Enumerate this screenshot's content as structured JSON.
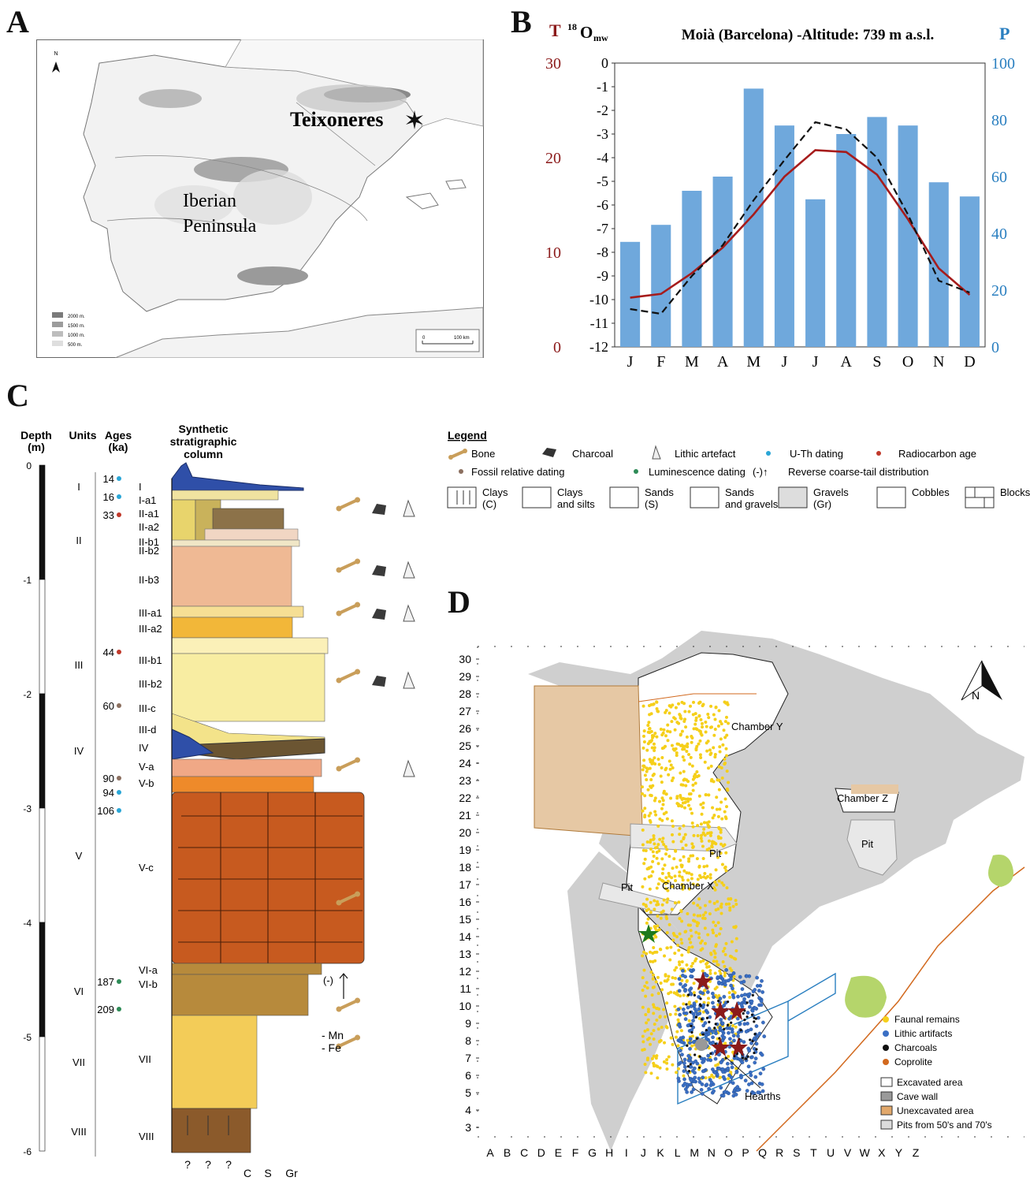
{
  "panels": {
    "a": "A",
    "b": "B",
    "c": "C",
    "d": "D"
  },
  "map": {
    "site_label": "Teixoneres",
    "region_label_1": "Iberian",
    "region_label_2": "Peninsula",
    "north": "N",
    "elevation_legend": [
      "2000 m.",
      "1500 m.",
      "1000 m.",
      "500 m."
    ],
    "elevation_colors": [
      "#7a7a7a",
      "#9c9c9c",
      "#bdbdbd",
      "#dedede"
    ],
    "scalebar": {
      "start": "0",
      "end": "100 km"
    }
  },
  "chart_data": {
    "type": "bar+line",
    "title": "Moià (Barcelona) -Altitude: 739 m a.s.l.",
    "categories": [
      "J",
      "F",
      "M",
      "A",
      "M",
      "J",
      "J",
      "A",
      "S",
      "O",
      "N",
      "D"
    ],
    "left_axis_T": {
      "label": "T",
      "ticks": [
        "0",
        "10",
        "20",
        "30"
      ],
      "range": [
        0,
        30
      ],
      "color": "#8b1a1a"
    },
    "left_axis_O": {
      "label_main": "O",
      "label_sup": "18",
      "label_sub": "mw",
      "ticks": [
        "0",
        "-1",
        "-2",
        "-3",
        "-4",
        "-5",
        "-6",
        "-7",
        "-8",
        "-9",
        "-10",
        "-11",
        "-12"
      ],
      "range": [
        -12,
        0
      ]
    },
    "right_axis_P": {
      "label": "P",
      "ticks": [
        "0",
        "20",
        "40",
        "60",
        "80",
        "100"
      ],
      "range": [
        0,
        100
      ],
      "color": "#2a7fc0"
    },
    "series": [
      {
        "values": [
          37,
          43,
          55,
          60,
          91,
          78,
          52,
          75,
          81,
          78,
          58,
          53
        ],
        "color": "#6fa8dc",
        "kind": "bar",
        "axis": "P"
      },
      {
        "values": [
          5.2,
          5.6,
          7.8,
          10.5,
          14.0,
          18.0,
          20.8,
          20.6,
          18.2,
          13.5,
          8.3,
          5.5
        ],
        "color": "#a61c1c",
        "kind": "line",
        "axis": "T"
      },
      {
        "values": [
          -10.4,
          -10.6,
          -9.0,
          -7.7,
          -5.8,
          -4.1,
          -2.5,
          -2.8,
          -4.0,
          -6.4,
          -9.2,
          -9.7
        ],
        "color": "#111111",
        "kind": "dashed",
        "axis": "O"
      }
    ]
  },
  "column": {
    "headers": {
      "depth": "Depth",
      "depth_unit": "(m)",
      "units": "Units",
      "ages": "Ages",
      "ages_unit": "(ka)",
      "synthetic_1": "Synthetic",
      "synthetic_2": "stratigraphic",
      "synthetic_3": "column"
    },
    "depth_ticks": [
      "0",
      "-1",
      "-2",
      "-3",
      "-4",
      "-5",
      "-6"
    ],
    "units": [
      "I",
      "II",
      "III",
      "IV",
      "V",
      "VI",
      "VII",
      "VIII"
    ],
    "ages": [
      {
        "value": "14",
        "color": "#2aa6d6"
      },
      {
        "value": "16",
        "color": "#2aa6d6"
      },
      {
        "value": "33",
        "color": "#c0392b"
      },
      {
        "value": "44",
        "color": "#c0392b"
      },
      {
        "value": "60",
        "color": "#8b6f5f"
      },
      {
        "value": "90",
        "color": "#8b6f5f"
      },
      {
        "value": "94",
        "color": "#2aa6d6"
      },
      {
        "value": "106",
        "color": "#2aa6d6"
      },
      {
        "value": "187",
        "color": "#2e8b57"
      },
      {
        "value": "209",
        "color": "#2e8b57"
      }
    ],
    "layers": [
      "I",
      "I-a1",
      "II-a1",
      "II-a2",
      "II-b1",
      "II-b2",
      "II-b3",
      "III-a1",
      "III-a2",
      "III-b1",
      "III-b2",
      "III-c",
      "III-d",
      "IV",
      "V-a",
      "V-b",
      "V-c",
      "VI-a",
      "VI-b",
      "VII",
      "VIII"
    ],
    "bottom_labels": [
      "?",
      "?",
      "?",
      "C",
      "S",
      "Gr"
    ],
    "reverse_mark": "(-)",
    "mn": "- Mn",
    "fe": "- Fe"
  },
  "legend": {
    "title": "Legend",
    "bone": "Bone",
    "charcoal": "Charcoal",
    "lithic": "Lithic artefact",
    "uth": "U-Th dating",
    "radiocarbon": "Radiocarbon age",
    "fossil": "Fossil relative dating",
    "luminescence": "Luminescence dating",
    "reverse": "(-)↑",
    "reverse_text": "Reverse coarse-tail distribution",
    "textures": [
      {
        "l1": "Clays",
        "l2": "(C)"
      },
      {
        "l1": "Clays",
        "l2": "and silts"
      },
      {
        "l1": "Sands",
        "l2": "(S)"
      },
      {
        "l1": "Sands",
        "l2": "and gravels"
      },
      {
        "l1": "Gravels",
        "l2": "(Gr)"
      },
      {
        "l1": "Cobbles",
        "l2": ""
      },
      {
        "l1": "Blocks",
        "l2": ""
      }
    ]
  },
  "plan": {
    "rows": [
      "30",
      "29",
      "28",
      "27",
      "26",
      "25",
      "24",
      "23",
      "22",
      "21",
      "20",
      "19",
      "18",
      "17",
      "16",
      "15",
      "14",
      "13",
      "12",
      "11",
      "10",
      "9",
      "8",
      "7",
      "6",
      "5",
      "4",
      "3"
    ],
    "cols": [
      "A",
      "B",
      "C",
      "D",
      "E",
      "F",
      "G",
      "H",
      "I",
      "J",
      "K",
      "L",
      "M",
      "N",
      "O",
      "P",
      "Q",
      "R",
      "S",
      "T",
      "U",
      "V",
      "W",
      "X",
      "Y",
      "Z"
    ],
    "chamber_x": "Chamber X",
    "chamber_y": "Chamber Y",
    "chamber_z": "Chamber Z",
    "pit": "Pit",
    "hearths": "Hearths",
    "north": "N",
    "legend_points": [
      {
        "label": "Faunal remains",
        "color": "#f5cf1a"
      },
      {
        "label": "Lithic artifacts",
        "color": "#3a6fc4"
      },
      {
        "label": "Charcoals",
        "color": "#111111"
      },
      {
        "label": "Coprolite",
        "color": "#d2691e"
      }
    ],
    "legend_areas": [
      {
        "label": "Excavated area",
        "color": "#ffffff"
      },
      {
        "label": "Cave wall",
        "color": "#9a9a9a"
      },
      {
        "label": "Unexcavated area",
        "color": "#e2a86b"
      },
      {
        "label": "Pits from 50's and 70's",
        "color": "#dcdcdc"
      }
    ]
  }
}
